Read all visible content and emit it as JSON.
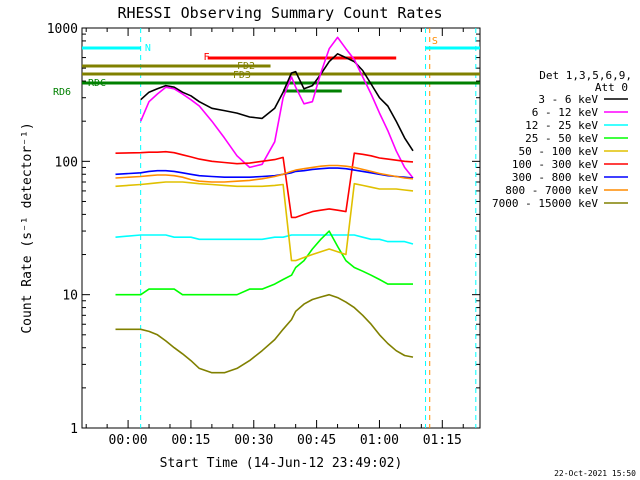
{
  "chart_data": {
    "type": "line",
    "title": "RHESSI Observing Summary Count Rates",
    "xlabel": "Start Time (14-Jun-12 23:49:02)",
    "ylabel": "Count Rate (s⁻¹ detector⁻¹)",
    "y_scale": "log",
    "ylim": [
      1,
      1000
    ],
    "xlim_minutes": [
      -11,
      84
    ],
    "x_tick_labels": [
      "00:00",
      "00:15",
      "00:30",
      "00:45",
      "01:00",
      "01:15"
    ],
    "x_tick_minutes": [
      0,
      15,
      30,
      45,
      60,
      75
    ],
    "y_tick_labels": [
      "1",
      "10",
      "100",
      "1000"
    ],
    "y_tick_values": [
      1,
      10,
      100,
      1000
    ],
    "grid": false,
    "legend_position": "right",
    "legend_header": [
      "Det 1,3,5,6,9,",
      "Att 0"
    ],
    "footer_date": "22-Oct-2021 15:50",
    "flag_labels": [
      {
        "text": "N",
        "color": "#00ffff"
      },
      {
        "text": "S",
        "color": "#ff8c00"
      },
      {
        "text": "F",
        "color": "#ff0000"
      },
      {
        "text": "FD2",
        "color": "#808000"
      },
      {
        "text": "FD3",
        "color": "#808000"
      },
      {
        "text": "RD6",
        "color": "#008000"
      },
      {
        "text": "RDC",
        "color": "#008000"
      }
    ],
    "x_minutes": [
      -11,
      -9,
      -7,
      -5,
      -3,
      3,
      5,
      7,
      9,
      11,
      13,
      15,
      17,
      20,
      23,
      26,
      29,
      32,
      35,
      37,
      39,
      40,
      42,
      44,
      46,
      48,
      50,
      52,
      54,
      56,
      58,
      60,
      62,
      64,
      66,
      68,
      70,
      72,
      74
    ],
    "series": [
      {
        "name": "3 - 6 keV",
        "color": "#000000",
        "values": [
          null,
          null,
          null,
          null,
          null,
          290,
          330,
          350,
          370,
          360,
          330,
          310,
          280,
          250,
          240,
          230,
          215,
          210,
          250,
          330,
          460,
          470,
          350,
          370,
          450,
          560,
          640,
          600,
          560,
          480,
          380,
          300,
          260,
          200,
          150,
          120,
          null,
          null,
          null
        ]
      },
      {
        "name": "6 - 12 keV",
        "color": "#ff00ff",
        "values": [
          null,
          null,
          null,
          null,
          null,
          200,
          280,
          320,
          360,
          350,
          320,
          290,
          260,
          200,
          150,
          110,
          90,
          95,
          140,
          300,
          430,
          360,
          270,
          280,
          460,
          700,
          850,
          700,
          580,
          430,
          320,
          230,
          170,
          120,
          90,
          75,
          null,
          null,
          null
        ]
      },
      {
        "name": "12 - 25 keV",
        "color": "#00ffff",
        "values": [
          null,
          null,
          null,
          null,
          27,
          28,
          28,
          28,
          28,
          27,
          27,
          27,
          26,
          26,
          26,
          26,
          26,
          26,
          27,
          27,
          28,
          28,
          28,
          28,
          28,
          28,
          28,
          28,
          28,
          27,
          26,
          26,
          25,
          25,
          25,
          24,
          null,
          null,
          null
        ]
      },
      {
        "name": "25 - 50 keV",
        "color": "#00ff00",
        "values": [
          null,
          null,
          null,
          null,
          10,
          10,
          11,
          11,
          11,
          11,
          10,
          10,
          10,
          10,
          10,
          10,
          11,
          11,
          12,
          13,
          14,
          16,
          18,
          22,
          26,
          30,
          23,
          18,
          16,
          15,
          14,
          13,
          12,
          12,
          12,
          12,
          null,
          null,
          null
        ]
      },
      {
        "name": "50 - 100 keV",
        "color": "#e0c000",
        "values": [
          null,
          null,
          null,
          null,
          65,
          67,
          68,
          69,
          70,
          70,
          70,
          69,
          68,
          67,
          66,
          65,
          65,
          65,
          66,
          67,
          18,
          18,
          19,
          20,
          21,
          22,
          21,
          20,
          68,
          66,
          64,
          62,
          62,
          62,
          61,
          60,
          null,
          null,
          null
        ]
      },
      {
        "name": "100 - 300 keV",
        "color": "#ff0000",
        "values": [
          null,
          null,
          null,
          null,
          115,
          116,
          117,
          117,
          118,
          116,
          112,
          108,
          104,
          100,
          98,
          96,
          97,
          100,
          103,
          107,
          38,
          38,
          40,
          42,
          43,
          44,
          43,
          42,
          115,
          113,
          110,
          106,
          104,
          102,
          100,
          99,
          null,
          null,
          null
        ]
      },
      {
        "name": "300 - 800 keV",
        "color": "#0000ff",
        "values": [
          null,
          null,
          null,
          null,
          80,
          82,
          84,
          85,
          85,
          84,
          82,
          80,
          78,
          77,
          76,
          76,
          76,
          77,
          78,
          80,
          82,
          84,
          85,
          87,
          88,
          89,
          89,
          88,
          86,
          84,
          82,
          80,
          78,
          77,
          76,
          75,
          null,
          null,
          null
        ]
      },
      {
        "name": "800 - 7000 keV",
        "color": "#ff8c00",
        "values": [
          null,
          null,
          null,
          null,
          75,
          77,
          78,
          79,
          79,
          78,
          76,
          73,
          71,
          70,
          70,
          71,
          72,
          74,
          77,
          80,
          84,
          86,
          88,
          90,
          92,
          93,
          93,
          92,
          90,
          87,
          84,
          81,
          79,
          77,
          75,
          74,
          null,
          null,
          null
        ]
      },
      {
        "name": "7000 - 15000 keV",
        "color": "#808000",
        "values": [
          null,
          null,
          null,
          null,
          5.5,
          5.5,
          5.3,
          5.0,
          4.5,
          4.0,
          3.6,
          3.2,
          2.8,
          2.6,
          2.6,
          2.8,
          3.2,
          3.8,
          4.6,
          5.5,
          6.5,
          7.5,
          8.5,
          9.2,
          9.6,
          10,
          9.5,
          8.8,
          8.0,
          7.0,
          6.0,
          5.0,
          4.3,
          3.8,
          3.5,
          3.4,
          null,
          null,
          null
        ]
      }
    ]
  }
}
